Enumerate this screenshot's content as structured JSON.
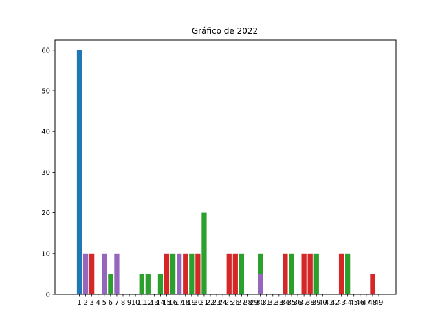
{
  "chart_data": {
    "type": "bar",
    "title": "Gráfico de 2022",
    "xlabel": "",
    "ylabel": "",
    "ylim": [
      0,
      62.5
    ],
    "yticks": [
      0,
      10,
      20,
      30,
      40,
      50,
      60
    ],
    "grid": false,
    "colors": {
      "blue": "#1f77b4",
      "red": "#d62728",
      "green": "#2ca02c",
      "purple": "#9467bd"
    },
    "categories": [
      "1",
      "2",
      "3",
      "4",
      "5",
      "6",
      "7",
      "8",
      "9",
      "10",
      "11",
      "12",
      "13",
      "14",
      "15",
      "16",
      "17",
      "18",
      "19",
      "20",
      "21",
      "22",
      "23",
      "24",
      "25",
      "26",
      "27",
      "28",
      "29",
      "30",
      "31",
      "32",
      "33",
      "34",
      "35",
      "36",
      "37",
      "38",
      "39",
      "40",
      "41",
      "42",
      "43",
      "44",
      "45",
      "46",
      "47",
      "48",
      "49"
    ],
    "bars": [
      {
        "x": 1,
        "value": 60,
        "color": "blue"
      },
      {
        "x": 2,
        "value": 10,
        "color": "purple"
      },
      {
        "x": 3,
        "value": 10,
        "color": "red"
      },
      {
        "x": 5,
        "value": 10,
        "color": "purple"
      },
      {
        "x": 6,
        "value": 5,
        "color": "green"
      },
      {
        "x": 7,
        "value": 10,
        "color": "purple"
      },
      {
        "x": 11,
        "value": 5,
        "color": "green"
      },
      {
        "x": 12,
        "value": 5,
        "color": "green"
      },
      {
        "x": 14,
        "value": 5,
        "color": "green"
      },
      {
        "x": 15,
        "value": 10,
        "color": "red"
      },
      {
        "x": 16,
        "value": 10,
        "color": "green"
      },
      {
        "x": 17,
        "value": 10,
        "color": "purple"
      },
      {
        "x": 18,
        "value": 10,
        "color": "red"
      },
      {
        "x": 19,
        "value": 10,
        "color": "green"
      },
      {
        "x": 20,
        "value": 10,
        "color": "red"
      },
      {
        "x": 21,
        "value": 20,
        "color": "green"
      },
      {
        "x": 25,
        "value": 10,
        "color": "red"
      },
      {
        "x": 26,
        "value": 10,
        "color": "red"
      },
      {
        "x": 27,
        "value": 10,
        "color": "green"
      },
      {
        "x": 30,
        "value": 10,
        "color": "green"
      },
      {
        "x": 30,
        "value": 5,
        "color": "purple"
      },
      {
        "x": 34,
        "value": 10,
        "color": "red"
      },
      {
        "x": 35,
        "value": 10,
        "color": "green"
      },
      {
        "x": 37,
        "value": 10,
        "color": "red"
      },
      {
        "x": 38,
        "value": 10,
        "color": "red"
      },
      {
        "x": 39,
        "value": 10,
        "color": "green"
      },
      {
        "x": 43,
        "value": 10,
        "color": "red"
      },
      {
        "x": 44,
        "value": 10,
        "color": "green"
      },
      {
        "x": 48,
        "value": 5,
        "color": "red"
      }
    ]
  }
}
